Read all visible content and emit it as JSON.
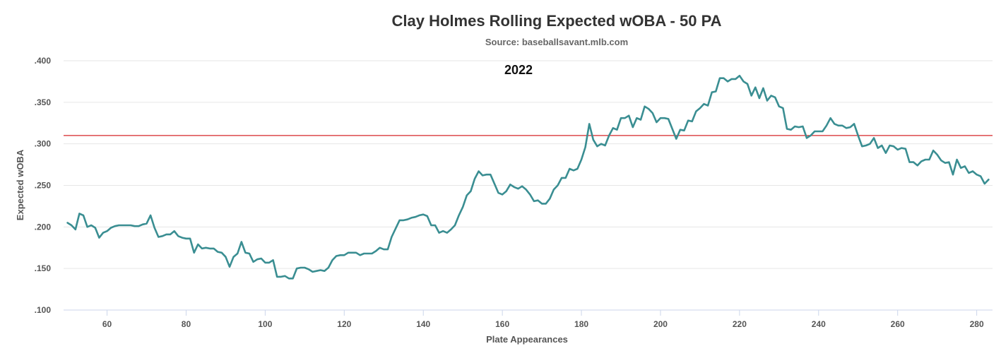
{
  "chart_data": {
    "type": "line",
    "title": "Clay Holmes Rolling Expected wOBA - 50 PA",
    "subtitle": "Source: baseballsavant.mlb.com",
    "xlabel": "Plate Appearances",
    "ylabel": "Expected wOBA",
    "annotation": "2022",
    "xlim": [
      49,
      284
    ],
    "ylim": [
      0.1,
      0.4
    ],
    "x_ticks": [
      60,
      80,
      100,
      120,
      140,
      160,
      180,
      200,
      220,
      240,
      260,
      280
    ],
    "x_tick_labels": [
      "60",
      "80",
      "100",
      "120",
      "140",
      "160",
      "180",
      "200",
      "220",
      "240",
      "260",
      "280"
    ],
    "y_ticks": [
      0.1,
      0.15,
      0.2,
      0.25,
      0.3,
      0.35,
      0.4
    ],
    "y_tick_labels": [
      ".100",
      ".150",
      ".200",
      ".250",
      ".300",
      ".350",
      ".400"
    ],
    "grid": true,
    "reference_line": {
      "y": 0.31,
      "color": "#d62728"
    },
    "line_color": "#3a8e92",
    "series": [
      {
        "x": [
          50,
          51,
          52,
          53,
          54,
          55,
          56,
          57,
          58,
          59,
          60,
          61,
          62,
          63,
          64,
          65,
          66,
          67,
          68,
          69,
          70,
          71,
          72,
          73,
          74,
          75,
          76,
          77,
          78,
          79,
          80,
          81,
          82,
          83,
          84,
          85,
          86,
          87,
          88,
          89,
          90,
          91,
          92,
          93,
          94,
          95,
          96,
          97,
          98,
          99,
          100,
          101,
          102,
          103,
          104,
          105,
          106,
          107,
          108,
          109,
          110,
          111,
          112,
          113,
          114,
          115,
          116,
          117,
          118,
          119,
          120,
          121,
          122,
          123,
          124,
          125,
          126,
          127,
          128,
          129,
          130,
          131,
          132,
          133,
          134,
          135,
          136,
          137,
          138,
          139,
          140,
          141,
          142,
          143,
          144,
          145,
          146,
          147,
          148,
          149,
          150,
          151,
          152,
          153,
          154,
          155,
          156,
          157,
          158,
          159,
          160,
          161,
          162,
          163,
          164,
          165,
          166,
          167,
          168,
          169,
          170,
          171,
          172,
          173,
          174,
          175,
          176,
          177,
          178,
          179,
          180,
          181,
          182,
          183,
          184,
          185,
          186,
          187,
          188,
          189,
          190,
          191,
          192,
          193,
          194,
          195,
          196,
          197,
          198,
          199,
          200,
          201,
          202,
          203,
          204,
          205,
          206,
          207,
          208,
          209,
          210,
          211,
          212,
          213,
          214,
          215,
          216,
          217,
          218,
          219,
          220,
          221,
          222,
          223,
          224,
          225,
          226,
          227,
          228,
          229,
          230,
          231,
          232,
          233,
          234,
          235,
          236,
          237,
          238,
          239,
          240,
          241,
          242,
          243,
          244,
          245,
          246,
          247,
          248,
          249,
          250,
          251,
          252,
          253,
          254,
          255,
          256,
          257,
          258,
          259,
          260,
          261,
          262,
          263,
          264,
          265,
          266,
          267,
          268,
          269,
          270,
          271,
          272,
          273,
          274,
          275,
          276,
          277,
          278,
          279,
          280,
          281,
          282,
          283
        ],
        "values": [
          0.205,
          0.202,
          0.197,
          0.216,
          0.214,
          0.2,
          0.202,
          0.199,
          0.187,
          0.193,
          0.195,
          0.199,
          0.201,
          0.202,
          0.202,
          0.202,
          0.202,
          0.201,
          0.201,
          0.203,
          0.204,
          0.214,
          0.199,
          0.188,
          0.189,
          0.191,
          0.191,
          0.195,
          0.189,
          0.187,
          0.186,
          0.186,
          0.169,
          0.179,
          0.174,
          0.175,
          0.174,
          0.174,
          0.17,
          0.169,
          0.164,
          0.152,
          0.164,
          0.168,
          0.182,
          0.169,
          0.168,
          0.158,
          0.161,
          0.162,
          0.157,
          0.157,
          0.16,
          0.14,
          0.14,
          0.141,
          0.138,
          0.138,
          0.15,
          0.151,
          0.151,
          0.149,
          0.146,
          0.147,
          0.148,
          0.147,
          0.151,
          0.16,
          0.165,
          0.166,
          0.166,
          0.169,
          0.169,
          0.169,
          0.166,
          0.168,
          0.168,
          0.168,
          0.171,
          0.175,
          0.173,
          0.173,
          0.188,
          0.198,
          0.208,
          0.208,
          0.209,
          0.211,
          0.212,
          0.214,
          0.215,
          0.213,
          0.202,
          0.202,
          0.193,
          0.195,
          0.193,
          0.197,
          0.202,
          0.214,
          0.224,
          0.238,
          0.243,
          0.258,
          0.267,
          0.262,
          0.263,
          0.263,
          0.252,
          0.241,
          0.239,
          0.243,
          0.251,
          0.248,
          0.246,
          0.249,
          0.245,
          0.239,
          0.231,
          0.232,
          0.228,
          0.228,
          0.234,
          0.245,
          0.25,
          0.259,
          0.259,
          0.27,
          0.268,
          0.27,
          0.281,
          0.296,
          0.324,
          0.305,
          0.297,
          0.3,
          0.298,
          0.31,
          0.319,
          0.317,
          0.331,
          0.331,
          0.334,
          0.32,
          0.331,
          0.329,
          0.345,
          0.342,
          0.337,
          0.326,
          0.331,
          0.331,
          0.33,
          0.318,
          0.306,
          0.317,
          0.316,
          0.328,
          0.327,
          0.339,
          0.343,
          0.348,
          0.346,
          0.362,
          0.363,
          0.379,
          0.379,
          0.375,
          0.378,
          0.378,
          0.382,
          0.375,
          0.372,
          0.358,
          0.368,
          0.355,
          0.367,
          0.352,
          0.358,
          0.356,
          0.345,
          0.343,
          0.318,
          0.317,
          0.321,
          0.32,
          0.321,
          0.307,
          0.31,
          0.315,
          0.315,
          0.315,
          0.322,
          0.331,
          0.324,
          0.322,
          0.322,
          0.319,
          0.32,
          0.324,
          0.31,
          0.297,
          0.298,
          0.3,
          0.307,
          0.295,
          0.298,
          0.289,
          0.298,
          0.297,
          0.293,
          0.295,
          0.294,
          0.278,
          0.278,
          0.274,
          0.279,
          0.281,
          0.281,
          0.292,
          0.287,
          0.28,
          0.277,
          0.278,
          0.263,
          0.281,
          0.271,
          0.273,
          0.265,
          0.267,
          0.263,
          0.261,
          0.252,
          0.257
        ]
      }
    ]
  }
}
